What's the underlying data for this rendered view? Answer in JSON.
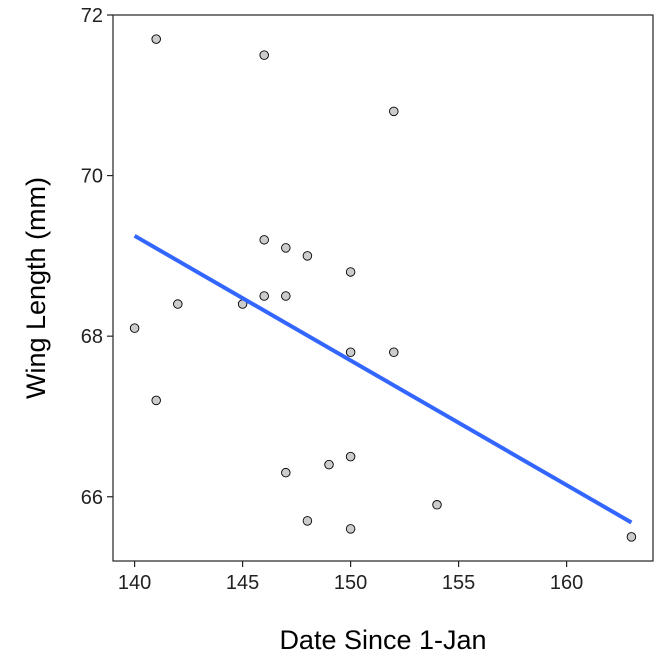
{
  "chart_data": {
    "type": "scatter",
    "title": "",
    "xlabel": "Date Since 1-Jan",
    "ylabel": "Wing Length (mm)",
    "xlim": [
      139,
      164
    ],
    "ylim": [
      65.2,
      72.0
    ],
    "x_ticks": [
      140,
      145,
      150,
      155,
      160
    ],
    "y_ticks": [
      66,
      68,
      70,
      72
    ],
    "grid": false,
    "legend": "none",
    "point_color": "#cccccc",
    "point_stroke": "#000000",
    "line_color": "#3366ff",
    "points": [
      {
        "x": 140,
        "y": 68.1
      },
      {
        "x": 141,
        "y": 71.7
      },
      {
        "x": 141,
        "y": 67.2
      },
      {
        "x": 142,
        "y": 68.4
      },
      {
        "x": 145,
        "y": 68.4
      },
      {
        "x": 146,
        "y": 71.5
      },
      {
        "x": 146,
        "y": 69.2
      },
      {
        "x": 146,
        "y": 68.5
      },
      {
        "x": 147,
        "y": 69.1
      },
      {
        "x": 147,
        "y": 68.5
      },
      {
        "x": 147,
        "y": 66.3
      },
      {
        "x": 148,
        "y": 69.0
      },
      {
        "x": 148,
        "y": 65.7
      },
      {
        "x": 149,
        "y": 66.4
      },
      {
        "x": 150,
        "y": 68.8
      },
      {
        "x": 150,
        "y": 67.8
      },
      {
        "x": 150,
        "y": 66.5
      },
      {
        "x": 150,
        "y": 65.6
      },
      {
        "x": 152,
        "y": 70.8
      },
      {
        "x": 152,
        "y": 67.8
      },
      {
        "x": 154,
        "y": 65.9
      },
      {
        "x": 163,
        "y": 65.5
      }
    ],
    "fit_line": {
      "x": [
        140,
        163
      ],
      "y": [
        69.25,
        65.68
      ]
    }
  }
}
